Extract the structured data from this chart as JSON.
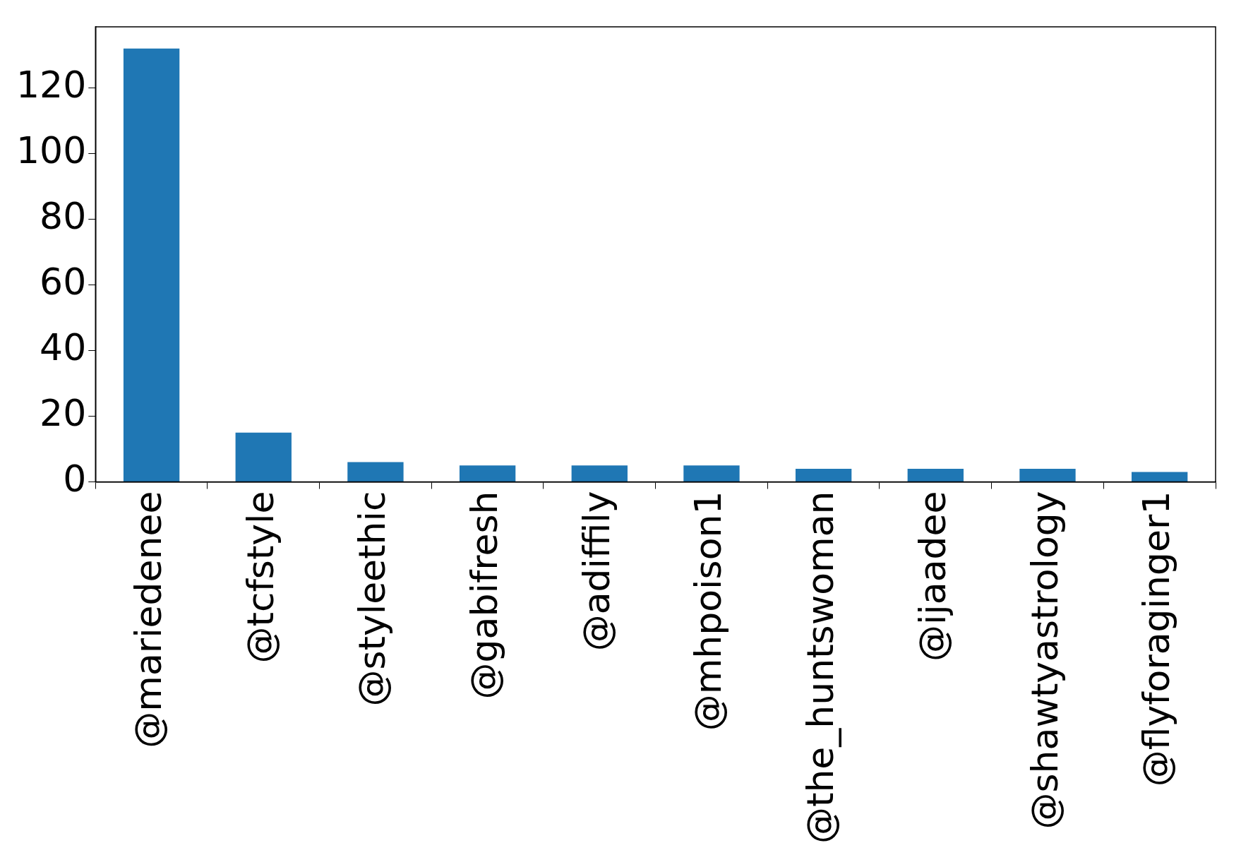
{
  "chart_data": {
    "type": "bar",
    "categories": [
      "@mariedenee",
      "@tcfstyle",
      "@styleethic",
      "@gabifresh",
      "@adiffily",
      "@mhpoison1",
      "@the_huntswoman",
      "@ijaadee",
      "@shawtyastrology",
      "@flyforaginger1"
    ],
    "values": [
      132,
      15,
      6,
      5,
      5,
      5,
      4,
      4,
      4,
      3
    ],
    "color": "#1f77b4",
    "ylim": [
      0,
      138.6
    ],
    "yticks": [
      0,
      20,
      40,
      60,
      80,
      100,
      120
    ],
    "grid": false,
    "legend": false
  }
}
